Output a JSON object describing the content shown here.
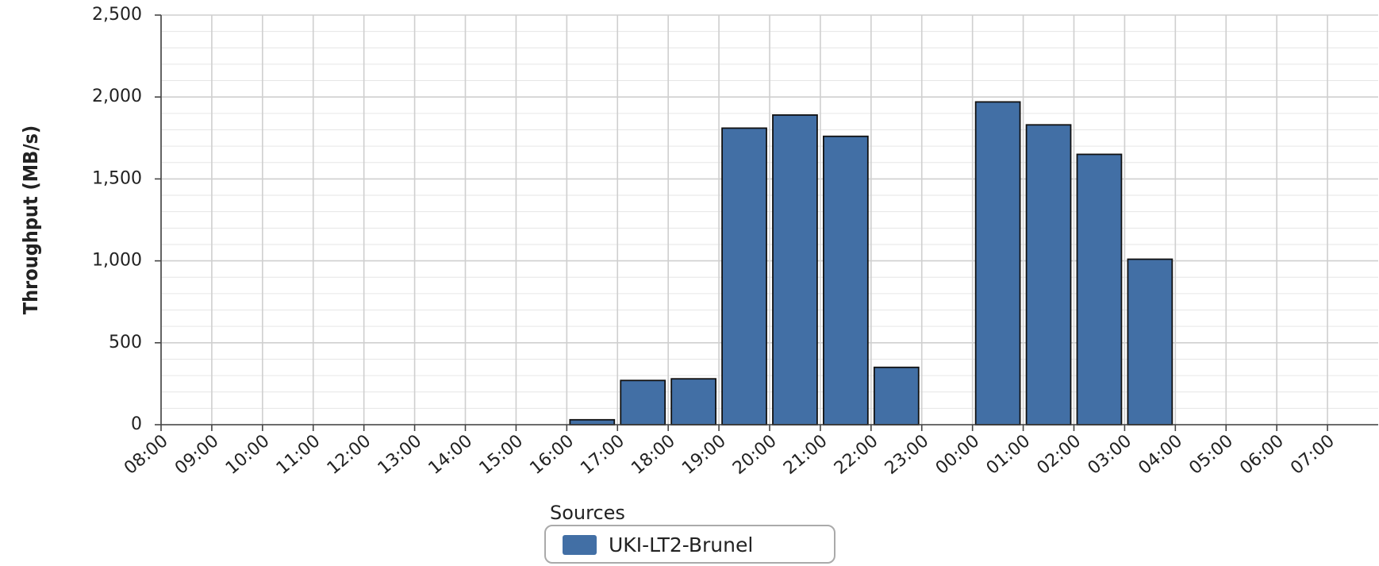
{
  "chart_data": {
    "type": "bar",
    "y_label": "Throughput (MB/s)",
    "legend_title": "Sources",
    "categories": [
      "08:00",
      "09:00",
      "10:00",
      "11:00",
      "12:00",
      "13:00",
      "14:00",
      "15:00",
      "16:00",
      "17:00",
      "18:00",
      "19:00",
      "20:00",
      "21:00",
      "22:00",
      "23:00",
      "00:00",
      "01:00",
      "02:00",
      "03:00",
      "04:00",
      "05:00",
      "06:00",
      "07:00"
    ],
    "series": [
      {
        "name": "UKI-LT2-Brunel",
        "color": "#426fa5",
        "values": [
          null,
          null,
          null,
          null,
          null,
          null,
          null,
          null,
          30,
          270,
          280,
          1810,
          1890,
          1760,
          350,
          null,
          1970,
          1830,
          1650,
          1010,
          null,
          null,
          null,
          null
        ]
      }
    ],
    "ylim": [
      0,
      2500
    ],
    "yticks": [
      0,
      500,
      {
        "value": 1000,
        "label": "1,000"
      },
      {
        "value": 1500,
        "label": "1,500"
      },
      {
        "value": 2000,
        "label": "2,000"
      },
      {
        "value": 2500,
        "label": "2,500"
      }
    ],
    "yminor": [
      100,
      200,
      300,
      400,
      600,
      700,
      800,
      900,
      1100,
      1200,
      1300,
      1400,
      1600,
      1700,
      1800,
      1900,
      2100,
      2200,
      2300,
      2400
    ],
    "grid": true
  }
}
